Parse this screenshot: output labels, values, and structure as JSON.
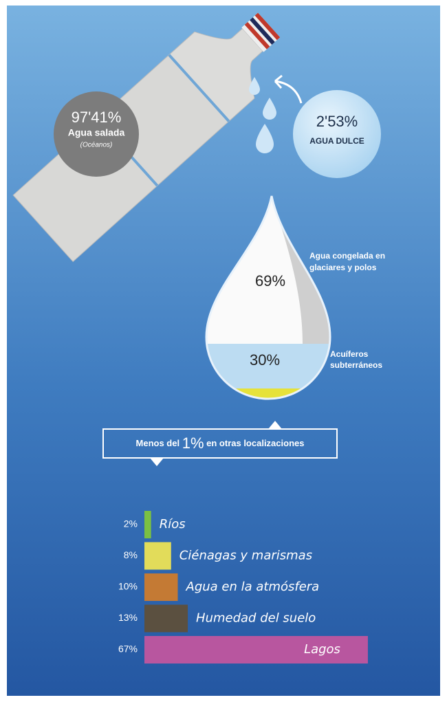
{
  "bottle": {
    "percent": "97'41%",
    "label": "Agua salada",
    "sublabel": "(Océanos)"
  },
  "fresh": {
    "percent": "2'53%",
    "label": "AGUA DULCE"
  },
  "drop": {
    "frozen": {
      "percent": "69%",
      "label_lines": [
        "Agua congelada en",
        "glaciares y polos"
      ]
    },
    "ground": {
      "percent": "30%",
      "label_lines": [
        "Acuíferos",
        "subterráneos"
      ]
    }
  },
  "callout": {
    "before": "Menos del",
    "highlight": "1%",
    "after": "en otras localizaciones"
  },
  "chart_data": {
    "type": "bar",
    "categories": [
      "Ríos",
      "Ciénagas y marismas",
      "Agua en la atmósfera",
      "Humedad del suelo",
      "Lagos"
    ],
    "values": [
      2,
      8,
      10,
      13,
      67
    ],
    "value_labels": [
      "2%",
      "8%",
      "10%",
      "13%",
      "67%"
    ],
    "colors": [
      "#7ac043",
      "#e2dc5a",
      "#c47a34",
      "#5b5040",
      "#b8569f"
    ]
  }
}
